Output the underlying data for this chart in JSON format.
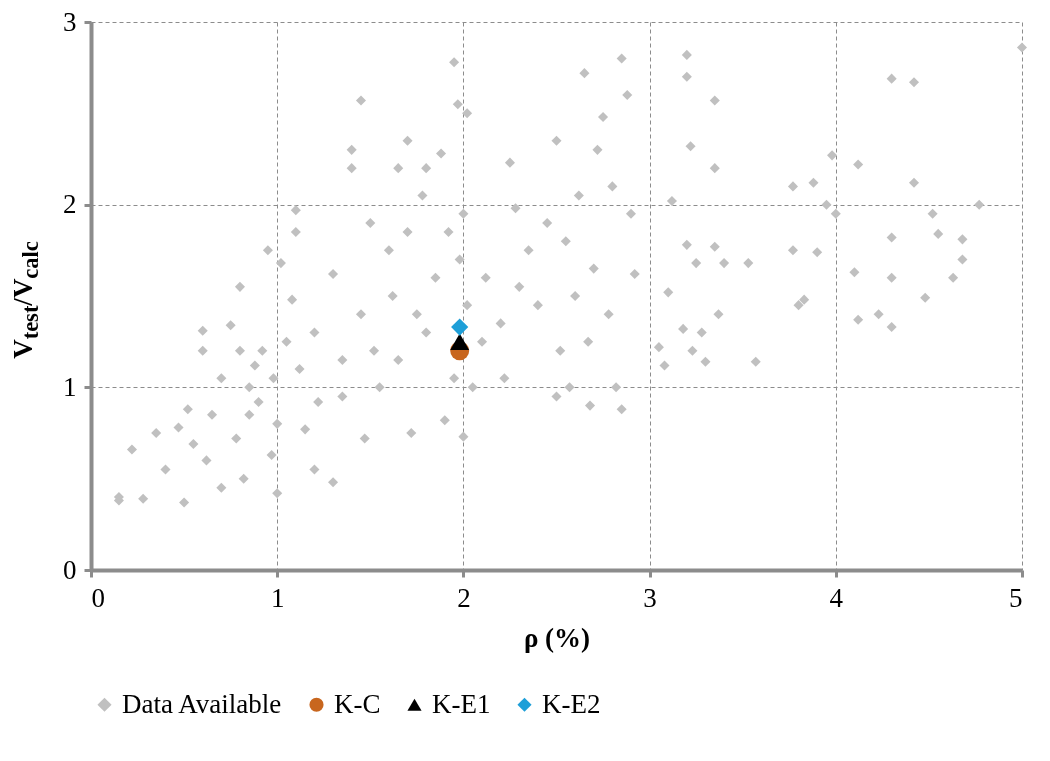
{
  "chart_data": {
    "type": "scatter",
    "xlabel": "ρ (%)",
    "ylabel": "V$_{test}$/V$_{calc}$",
    "xlim": [
      0,
      5
    ],
    "xticks": [
      0,
      1,
      2,
      3,
      4,
      5
    ],
    "ylim": [
      0,
      3
    ],
    "yticks": [
      0,
      1,
      2,
      3
    ],
    "grid": true,
    "legend": "bottom",
    "series": [
      {
        "name": "Data Available",
        "color": "#c0c0c0",
        "marker": "diamond",
        "x": [
          0.15,
          0.15,
          0.28,
          0.22,
          0.35,
          0.4,
          0.5,
          0.47,
          0.52,
          0.55,
          0.6,
          0.6,
          0.62,
          0.65,
          0.7,
          0.7,
          0.75,
          0.78,
          0.8,
          0.8,
          0.82,
          0.85,
          0.85,
          0.88,
          0.9,
          0.92,
          0.95,
          0.97,
          0.98,
          1.0,
          1.0,
          1.02,
          1.05,
          1.08,
          1.1,
          1.1,
          1.12,
          1.15,
          1.2,
          1.2,
          1.22,
          1.3,
          1.3,
          1.35,
          1.35,
          1.4,
          1.4,
          1.45,
          1.45,
          1.47,
          1.5,
          1.52,
          1.55,
          1.6,
          1.62,
          1.65,
          1.65,
          1.7,
          1.7,
          1.72,
          1.75,
          1.78,
          1.8,
          1.8,
          1.85,
          1.88,
          1.9,
          1.92,
          1.95,
          1.95,
          1.97,
          1.98,
          2.0,
          2.0,
          2.02,
          2.02,
          2.05,
          2.1,
          2.12,
          2.2,
          2.22,
          2.25,
          2.28,
          2.3,
          2.35,
          2.4,
          2.45,
          2.5,
          2.5,
          2.52,
          2.55,
          2.57,
          2.6,
          2.62,
          2.65,
          2.67,
          2.68,
          2.7,
          2.72,
          2.75,
          2.78,
          2.8,
          2.82,
          2.85,
          2.85,
          2.88,
          2.9,
          2.92,
          3.05,
          3.08,
          3.1,
          3.12,
          3.18,
          3.2,
          3.2,
          3.2,
          3.22,
          3.23,
          3.25,
          3.28,
          3.3,
          3.35,
          3.35,
          3.35,
          3.37,
          3.4,
          3.53,
          3.57,
          3.77,
          3.77,
          3.8,
          3.83,
          3.88,
          3.9,
          3.95,
          3.98,
          4.0,
          4.12,
          4.1,
          4.12,
          4.23,
          4.3,
          4.3,
          4.3,
          4.3,
          4.42,
          4.42,
          4.48,
          4.52,
          4.55,
          4.63,
          4.68,
          4.68,
          4.77,
          5.0
        ],
        "values": [
          0.4,
          0.38,
          0.39,
          0.66,
          0.75,
          0.55,
          0.37,
          0.78,
          0.88,
          0.69,
          1.31,
          1.2,
          0.6,
          0.85,
          0.45,
          1.05,
          1.34,
          0.72,
          1.55,
          1.2,
          0.5,
          1.0,
          0.85,
          1.12,
          0.92,
          1.2,
          1.75,
          0.63,
          1.05,
          0.42,
          0.8,
          1.68,
          1.25,
          1.48,
          1.97,
          1.85,
          1.1,
          0.77,
          0.55,
          1.3,
          0.92,
          0.48,
          1.62,
          1.15,
          0.95,
          2.3,
          2.2,
          2.57,
          1.4,
          0.72,
          1.9,
          1.2,
          1.0,
          1.75,
          1.5,
          2.2,
          1.15,
          2.35,
          1.85,
          0.75,
          1.4,
          2.05,
          2.2,
          1.3,
          1.6,
          2.28,
          0.82,
          1.85,
          2.78,
          1.05,
          2.55,
          1.7,
          0.73,
          1.95,
          2.5,
          1.45,
          1.0,
          1.25,
          1.6,
          1.35,
          1.05,
          2.23,
          1.98,
          1.55,
          1.75,
          1.45,
          1.9,
          0.95,
          2.35,
          1.2,
          1.8,
          1.0,
          1.5,
          2.05,
          2.72,
          1.25,
          0.9,
          1.65,
          2.3,
          2.48,
          1.4,
          2.1,
          1.0,
          2.8,
          0.88,
          2.6,
          1.95,
          1.62,
          1.22,
          1.12,
          1.52,
          2.02,
          1.32,
          2.82,
          2.7,
          1.78,
          2.32,
          1.2,
          1.68,
          1.3,
          1.14,
          2.57,
          2.2,
          1.77,
          1.4,
          1.68,
          1.68,
          1.14,
          2.1,
          1.75,
          1.45,
          1.48,
          2.12,
          1.74,
          2.0,
          2.27,
          1.95,
          2.22,
          1.63,
          1.37,
          1.4,
          2.69,
          1.82,
          1.6,
          1.33,
          2.67,
          2.12,
          1.49,
          1.95,
          1.84,
          1.6,
          1.81,
          1.7,
          2.0,
          2.86
        ]
      },
      {
        "name": "K-C",
        "color": "#c8661e",
        "marker": "circle",
        "x": [
          1.98
        ],
        "values": [
          1.2
        ]
      },
      {
        "name": "K-E1",
        "color": "#000000",
        "marker": "triangle",
        "x": [
          1.98
        ],
        "values": [
          1.25
        ]
      },
      {
        "name": "K-E2",
        "color": "#1e9fd8",
        "marker": "diamond",
        "x": [
          1.98
        ],
        "values": [
          1.33
        ]
      }
    ]
  }
}
